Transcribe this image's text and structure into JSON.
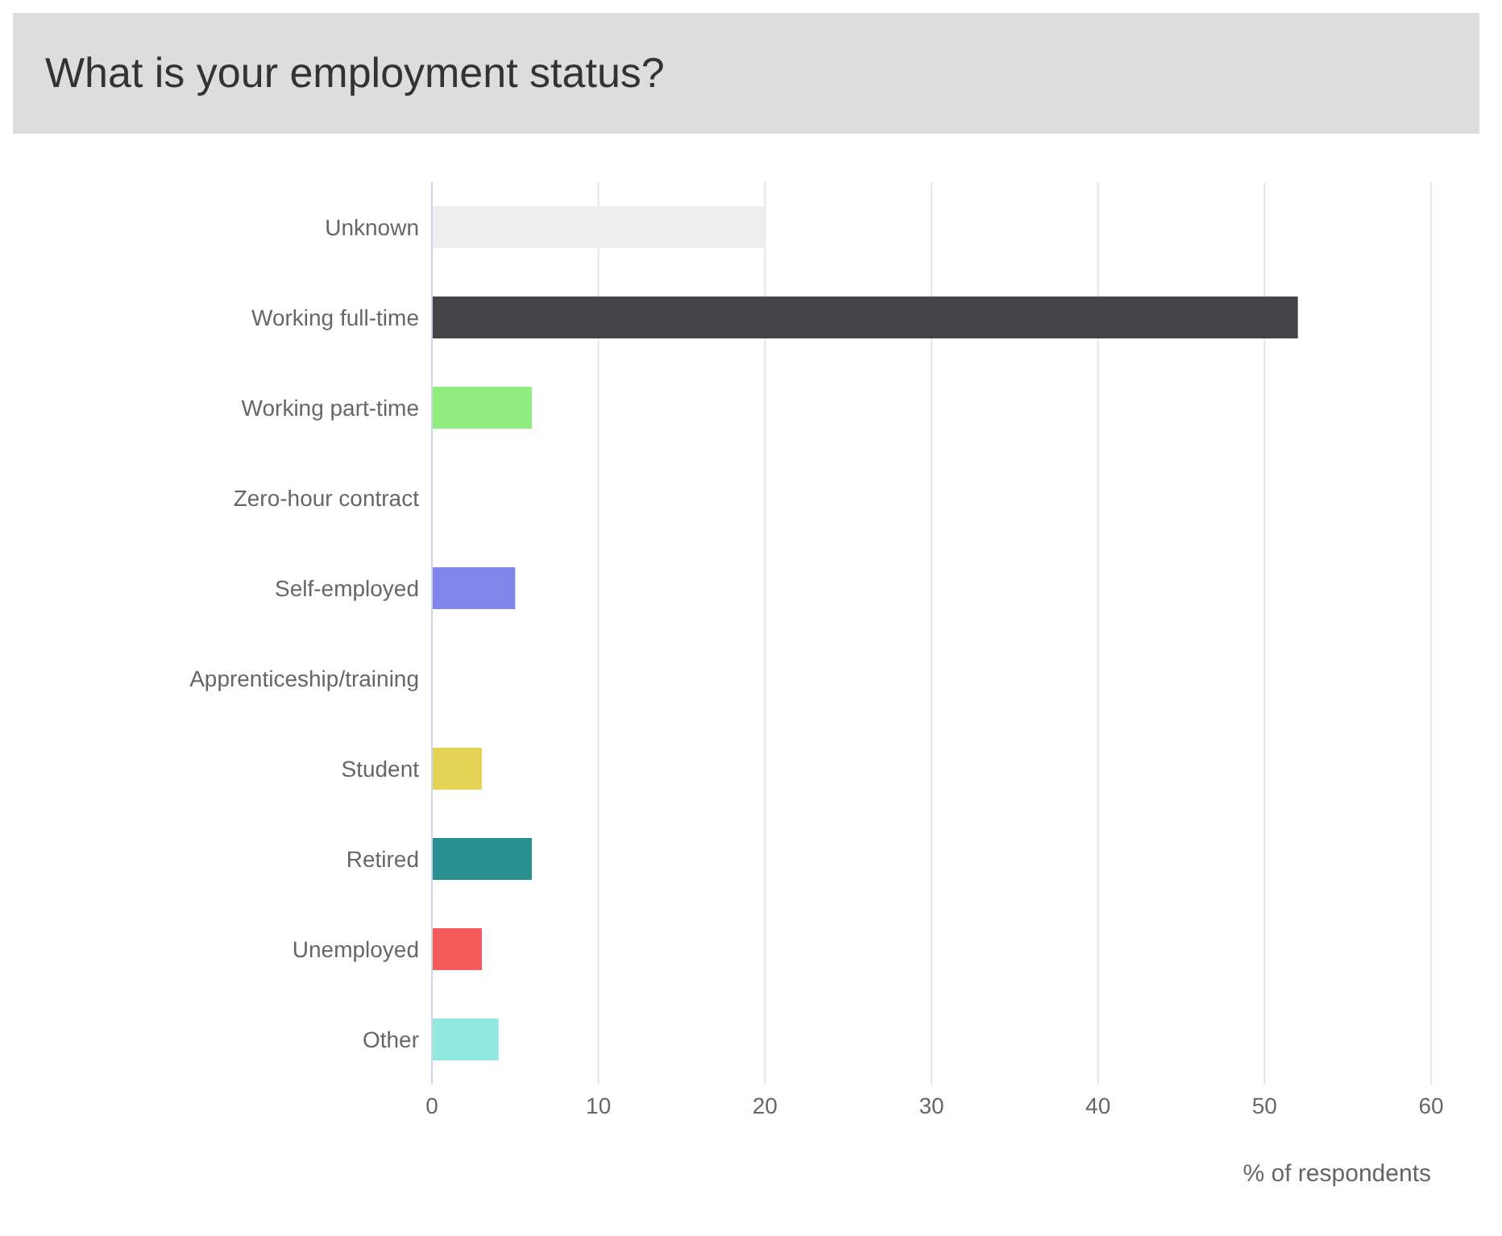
{
  "chart_data": {
    "type": "bar",
    "orientation": "horizontal",
    "title": "What is your employment status?",
    "xlabel": "% of respondents",
    "categories": [
      "Unknown",
      "Working full-time",
      "Working part-time",
      "Zero-hour contract",
      "Self-employed",
      "Apprenticeship/training",
      "Student",
      "Retired",
      "Unemployed",
      "Other"
    ],
    "values": [
      20,
      52,
      6,
      0,
      5,
      0,
      3,
      6,
      3,
      4
    ],
    "colors": [
      "#eeeeee",
      "#434348",
      "#90ed7d",
      "#f7a35c",
      "#8085e9",
      "#f15c80",
      "#e4d354",
      "#2b908f",
      "#f45b5b",
      "#91e8e1"
    ],
    "xlim": [
      0,
      60
    ],
    "xticks": [
      0,
      10,
      20,
      30,
      40,
      50,
      60
    ],
    "grid": "x",
    "legend": false
  }
}
